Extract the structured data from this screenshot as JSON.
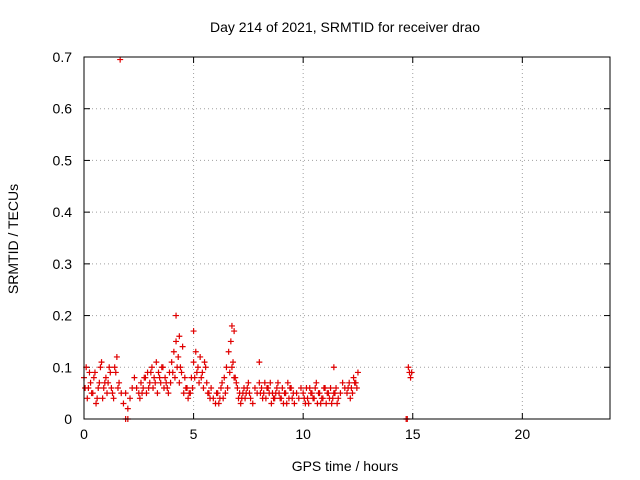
{
  "chart_data": {
    "type": "scatter",
    "title": "Day 214 of 2021, SRMTID for receiver drao",
    "xlabel": "GPS time / hours",
    "ylabel": "SRMTID / TECUs",
    "xlim": [
      0,
      24
    ],
    "ylim": [
      0,
      0.7
    ],
    "xticks": [
      0,
      5,
      10,
      15,
      20
    ],
    "yticks": [
      0,
      0.1,
      0.2,
      0.3,
      0.4,
      0.5,
      0.6,
      0.7
    ],
    "ytick_labels": [
      "0",
      "0.1",
      "0.2",
      "0.3",
      "0.4",
      "0.5",
      "0.6",
      "0.7"
    ],
    "xtick_labels": [
      "0",
      "5",
      "10",
      "15",
      "20"
    ],
    "grid": true,
    "marker": "+",
    "color": "#e00000",
    "series": [
      {
        "name": "SRMTID",
        "x": [
          0.0,
          0.1,
          0.2,
          0.3,
          0.4,
          0.5,
          0.6,
          0.7,
          0.8,
          0.9,
          1.0,
          1.1,
          1.2,
          1.3,
          1.4,
          1.5,
          1.6,
          1.7,
          1.8,
          1.9,
          2.0,
          2.1,
          2.2,
          2.3,
          2.4,
          2.5,
          2.6,
          2.7,
          2.8,
          2.9,
          3.0,
          3.1,
          3.2,
          3.3,
          3.4,
          3.5,
          3.6,
          3.7,
          3.8,
          3.9,
          4.0,
          4.1,
          4.2,
          4.3,
          4.4,
          4.5,
          4.6,
          4.7,
          4.8,
          4.9,
          5.0,
          5.1,
          5.2,
          5.3,
          5.4,
          5.5,
          5.6,
          5.7,
          5.8,
          5.9,
          6.0,
          6.1,
          6.2,
          6.3,
          6.4,
          6.5,
          6.6,
          6.7,
          6.8,
          6.9,
          7.0,
          7.1,
          7.2,
          7.3,
          7.4,
          7.5,
          7.6,
          7.7,
          7.8,
          7.9,
          8.0,
          8.1,
          8.2,
          8.3,
          8.4,
          8.5,
          8.6,
          8.7,
          8.8,
          8.9,
          9.0,
          9.1,
          9.2,
          9.3,
          9.4,
          9.5,
          9.6,
          9.7,
          9.8,
          9.9,
          10.0,
          10.1,
          10.2,
          10.3,
          10.4,
          10.5,
          10.6,
          10.7,
          10.8,
          10.9,
          11.0,
          11.1,
          11.2,
          11.3,
          11.4,
          11.5,
          11.6,
          11.7,
          11.8,
          11.9,
          12.0,
          12.1,
          12.2,
          12.3,
          12.4,
          12.5,
          0.05,
          0.15,
          0.25,
          0.35,
          0.45,
          0.55,
          0.65,
          0.75,
          0.85,
          0.95,
          1.05,
          1.15,
          1.25,
          1.35,
          1.45,
          1.55,
          2.55,
          2.65,
          2.75,
          2.85,
          2.95,
          3.05,
          3.15,
          3.25,
          3.35,
          3.45,
          3.55,
          3.65,
          3.75,
          3.85,
          3.95,
          4.05,
          4.15,
          4.25,
          4.35,
          4.45,
          4.55,
          4.65,
          4.75,
          4.85,
          4.95,
          5.05,
          5.15,
          5.25,
          5.35,
          5.45,
          5.55,
          5.65,
          5.75,
          6.05,
          6.15,
          6.25,
          6.35,
          6.45,
          6.55,
          6.65,
          6.75,
          6.85,
          6.95,
          7.05,
          7.15,
          7.25,
          7.35,
          7.45,
          7.55,
          8.05,
          8.15,
          8.25,
          8.35,
          8.45,
          8.55,
          8.65,
          8.75,
          8.85,
          8.95,
          9.05,
          9.15,
          9.25,
          9.35,
          9.45,
          9.55,
          10.05,
          10.15,
          10.25,
          10.35,
          10.45,
          10.55,
          10.65,
          10.75,
          10.85,
          10.95,
          11.05,
          11.15,
          11.25,
          11.35,
          11.45,
          11.55,
          12.05,
          12.15,
          12.25,
          12.35,
          12.45,
          1.65,
          4.2,
          4.35,
          5.0,
          6.75,
          6.85,
          8.0,
          11.4,
          1.9,
          2.0,
          14.7,
          14.75,
          14.85,
          14.9,
          14.95,
          14.8
        ],
        "y": [
          0.08,
          0.1,
          0.06,
          0.07,
          0.05,
          0.09,
          0.04,
          0.07,
          0.11,
          0.06,
          0.08,
          0.07,
          0.09,
          0.05,
          0.1,
          0.12,
          0.07,
          0.05,
          0.03,
          0.05,
          0.02,
          0.04,
          0.06,
          0.08,
          0.06,
          0.05,
          0.07,
          0.06,
          0.08,
          0.09,
          0.07,
          0.1,
          0.08,
          0.11,
          0.09,
          0.07,
          0.1,
          0.08,
          0.06,
          0.09,
          0.11,
          0.13,
          0.15,
          0.12,
          0.1,
          0.14,
          0.08,
          0.06,
          0.05,
          0.08,
          0.11,
          0.13,
          0.1,
          0.12,
          0.09,
          0.11,
          0.07,
          0.05,
          0.06,
          0.04,
          0.03,
          0.05,
          0.04,
          0.07,
          0.08,
          0.1,
          0.13,
          0.15,
          0.11,
          0.08,
          0.06,
          0.05,
          0.04,
          0.06,
          0.05,
          0.07,
          0.04,
          0.03,
          0.06,
          0.05,
          0.07,
          0.06,
          0.05,
          0.04,
          0.06,
          0.07,
          0.05,
          0.04,
          0.06,
          0.05,
          0.04,
          0.03,
          0.05,
          0.07,
          0.06,
          0.04,
          0.03,
          0.05,
          0.04,
          0.06,
          0.05,
          0.03,
          0.04,
          0.06,
          0.05,
          0.04,
          0.07,
          0.05,
          0.03,
          0.04,
          0.06,
          0.05,
          0.04,
          0.03,
          0.05,
          0.06,
          0.04,
          0.05,
          0.07,
          0.06,
          0.05,
          0.07,
          0.06,
          0.08,
          0.07,
          0.09,
          0.06,
          0.04,
          0.09,
          0.05,
          0.08,
          0.03,
          0.06,
          0.1,
          0.04,
          0.07,
          0.05,
          0.1,
          0.06,
          0.04,
          0.09,
          0.06,
          0.04,
          0.05,
          0.08,
          0.05,
          0.06,
          0.09,
          0.06,
          0.07,
          0.05,
          0.08,
          0.1,
          0.06,
          0.07,
          0.05,
          0.07,
          0.09,
          0.08,
          0.1,
          0.07,
          0.09,
          0.05,
          0.06,
          0.04,
          0.05,
          0.06,
          0.08,
          0.09,
          0.07,
          0.08,
          0.06,
          0.1,
          0.05,
          0.04,
          0.05,
          0.03,
          0.06,
          0.04,
          0.05,
          0.06,
          0.09,
          0.1,
          0.08,
          0.07,
          0.04,
          0.03,
          0.05,
          0.04,
          0.06,
          0.05,
          0.05,
          0.04,
          0.07,
          0.06,
          0.05,
          0.03,
          0.04,
          0.05,
          0.07,
          0.04,
          0.06,
          0.05,
          0.03,
          0.04,
          0.06,
          0.05,
          0.04,
          0.06,
          0.03,
          0.05,
          0.04,
          0.06,
          0.03,
          0.05,
          0.04,
          0.06,
          0.03,
          0.05,
          0.06,
          0.04,
          0.05,
          0.03,
          0.06,
          0.04,
          0.05,
          0.07,
          0.06,
          0.695,
          0.2,
          0.16,
          0.17,
          0.18,
          0.17,
          0.11,
          0.1,
          0.0,
          0.0,
          0.0,
          0.0,
          0.09,
          0.08,
          0.09,
          0.1
        ]
      }
    ]
  }
}
